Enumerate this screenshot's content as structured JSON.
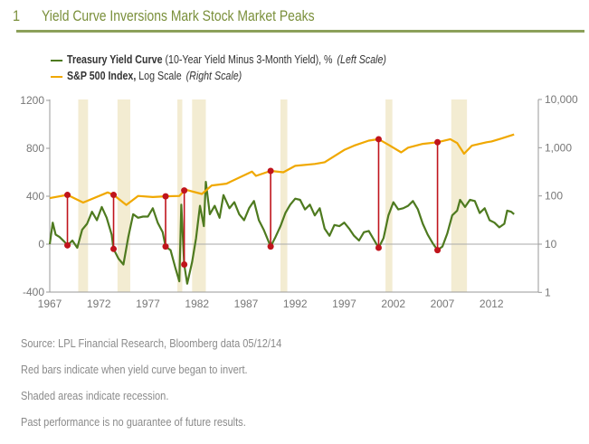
{
  "header": {
    "number": "1",
    "title": "Yield Curve Inversions Mark Stock Market Peaks"
  },
  "legend": [
    {
      "bold": "Treasury Yield Curve",
      "rest": " (10-Year Yield Minus 3-Month Yield), %",
      "scale": "(Left Scale)",
      "color": "#4e7a1f"
    },
    {
      "bold": "S&P 500 Index,",
      "rest": " Log Scale",
      "scale": "(Right Scale)",
      "color": "#f0a800"
    }
  ],
  "footer": [
    "Source: LPL Financial Research, Bloomberg data   05/12/14",
    "Red bars indicate when yield curve began to invert.",
    "Shaded areas indicate recession.",
    "Past performance is no guarantee of future results."
  ],
  "chart_data": {
    "type": "line",
    "title": "Yield Curve Inversions Mark Stock Market Peaks",
    "xlim": [
      1967,
      2014.4
    ],
    "x_ticks": [
      "1967",
      "1972",
      "1977",
      "1982",
      "1987",
      "1992",
      "1997",
      "2002",
      "2007",
      "2012"
    ],
    "left_axis": {
      "ylim": [
        -400,
        1200
      ],
      "ticks": [
        "1200",
        "800",
        "400",
        "0",
        "-400"
      ],
      "tick_values": [
        1200,
        800,
        400,
        0,
        -400
      ]
    },
    "right_axis": {
      "scale": "log",
      "ylim": [
        1,
        10000
      ],
      "ticks": [
        "10,000",
        "1,000",
        "100",
        "10",
        "1"
      ],
      "tick_values": [
        10000,
        1000,
        100,
        10,
        1
      ]
    },
    "colors": {
      "yield": "#4e7a1f",
      "sp500": "#f0a800",
      "inversion": "#c0141c",
      "recession": "#f3ecd2"
    },
    "recessions": [
      [
        1969.9,
        1970.9
      ],
      [
        1973.9,
        1975.2
      ],
      [
        1980.0,
        1980.5
      ],
      [
        1981.5,
        1982.9
      ],
      [
        1990.5,
        1991.2
      ],
      [
        2001.2,
        2001.9
      ],
      [
        2007.9,
        2009.5
      ]
    ],
    "series": [
      {
        "name": "Treasury Yield Curve",
        "axis": "left",
        "points": [
          [
            1967.0,
            0
          ],
          [
            1967.3,
            180
          ],
          [
            1967.6,
            80
          ],
          [
            1968.0,
            60
          ],
          [
            1968.5,
            20
          ],
          [
            1968.8,
            -10
          ],
          [
            1969.3,
            30
          ],
          [
            1969.8,
            -30
          ],
          [
            1970.3,
            120
          ],
          [
            1970.8,
            170
          ],
          [
            1971.3,
            270
          ],
          [
            1971.8,
            200
          ],
          [
            1972.3,
            310
          ],
          [
            1972.8,
            220
          ],
          [
            1973.3,
            80
          ],
          [
            1973.5,
            -40
          ],
          [
            1974.0,
            -120
          ],
          [
            1974.5,
            -170
          ],
          [
            1975.0,
            60
          ],
          [
            1975.5,
            250
          ],
          [
            1976.0,
            220
          ],
          [
            1976.5,
            230
          ],
          [
            1977.0,
            230
          ],
          [
            1977.5,
            300
          ],
          [
            1978.0,
            180
          ],
          [
            1978.5,
            100
          ],
          [
            1978.8,
            -20
          ],
          [
            1979.3,
            -50
          ],
          [
            1979.8,
            -200
          ],
          [
            1980.2,
            -310
          ],
          [
            1980.4,
            330
          ],
          [
            1980.7,
            -170
          ],
          [
            1981.0,
            -330
          ],
          [
            1981.5,
            -150
          ],
          [
            1981.9,
            50
          ],
          [
            1982.3,
            320
          ],
          [
            1982.7,
            150
          ],
          [
            1982.9,
            520
          ],
          [
            1983.3,
            250
          ],
          [
            1983.8,
            320
          ],
          [
            1984.3,
            220
          ],
          [
            1984.7,
            410
          ],
          [
            1985.3,
            300
          ],
          [
            1985.8,
            350
          ],
          [
            1986.3,
            250
          ],
          [
            1986.8,
            200
          ],
          [
            1987.3,
            300
          ],
          [
            1987.8,
            360
          ],
          [
            1988.3,
            200
          ],
          [
            1988.8,
            120
          ],
          [
            1989.5,
            -20
          ],
          [
            1990.0,
            60
          ],
          [
            1990.5,
            150
          ],
          [
            1991.0,
            260
          ],
          [
            1991.5,
            330
          ],
          [
            1992.0,
            380
          ],
          [
            1992.5,
            370
          ],
          [
            1993.0,
            290
          ],
          [
            1993.5,
            330
          ],
          [
            1994.0,
            240
          ],
          [
            1994.5,
            300
          ],
          [
            1995.0,
            130
          ],
          [
            1995.5,
            70
          ],
          [
            1996.0,
            160
          ],
          [
            1996.5,
            150
          ],
          [
            1997.0,
            180
          ],
          [
            1997.5,
            130
          ],
          [
            1998.0,
            70
          ],
          [
            1998.5,
            30
          ],
          [
            1999.0,
            100
          ],
          [
            1999.5,
            110
          ],
          [
            2000.5,
            -30
          ],
          [
            2001.0,
            50
          ],
          [
            2001.5,
            240
          ],
          [
            2002.0,
            350
          ],
          [
            2002.5,
            290
          ],
          [
            2003.0,
            300
          ],
          [
            2003.5,
            320
          ],
          [
            2004.0,
            360
          ],
          [
            2004.5,
            290
          ],
          [
            2005.0,
            170
          ],
          [
            2005.5,
            80
          ],
          [
            2006.0,
            10
          ],
          [
            2006.5,
            -50
          ],
          [
            2007.0,
            -20
          ],
          [
            2007.5,
            90
          ],
          [
            2008.0,
            240
          ],
          [
            2008.5,
            280
          ],
          [
            2008.8,
            370
          ],
          [
            2009.3,
            310
          ],
          [
            2009.8,
            370
          ],
          [
            2010.3,
            360
          ],
          [
            2010.8,
            260
          ],
          [
            2011.3,
            300
          ],
          [
            2011.8,
            200
          ],
          [
            2012.3,
            180
          ],
          [
            2012.8,
            140
          ],
          [
            2013.3,
            170
          ],
          [
            2013.6,
            280
          ],
          [
            2014.0,
            270
          ],
          [
            2014.3,
            250
          ]
        ]
      },
      {
        "name": "S&P 500 Index",
        "axis": "right",
        "points": [
          [
            1967.0,
            90
          ],
          [
            1968.8,
            105
          ],
          [
            1970.4,
            73
          ],
          [
            1972.9,
            118
          ],
          [
            1973.5,
            105
          ],
          [
            1974.8,
            65
          ],
          [
            1976.0,
            100
          ],
          [
            1977.5,
            95
          ],
          [
            1978.8,
            98
          ],
          [
            1980.2,
            100
          ],
          [
            1980.8,
            135
          ],
          [
            1982.5,
            110
          ],
          [
            1983.5,
            165
          ],
          [
            1985.0,
            180
          ],
          [
            1987.6,
            320
          ],
          [
            1988.0,
            260
          ],
          [
            1989.5,
            330
          ],
          [
            1990.8,
            310
          ],
          [
            1992.0,
            420
          ],
          [
            1994.0,
            460
          ],
          [
            1995.0,
            500
          ],
          [
            1997.0,
            900
          ],
          [
            1998.0,
            1100
          ],
          [
            1999.5,
            1400
          ],
          [
            2000.5,
            1500
          ],
          [
            2001.5,
            1150
          ],
          [
            2002.8,
            800
          ],
          [
            2003.5,
            1000
          ],
          [
            2005.0,
            1200
          ],
          [
            2006.5,
            1300
          ],
          [
            2007.8,
            1500
          ],
          [
            2008.5,
            1250
          ],
          [
            2009.2,
            750
          ],
          [
            2010.0,
            1100
          ],
          [
            2011.5,
            1300
          ],
          [
            2012.0,
            1350
          ],
          [
            2013.0,
            1550
          ],
          [
            2014.3,
            1880
          ]
        ]
      }
    ],
    "inversions": [
      {
        "x": 1968.8,
        "yield": -10,
        "sp500": 105
      },
      {
        "x": 1973.5,
        "yield": -40,
        "sp500": 105
      },
      {
        "x": 1978.8,
        "yield": -20,
        "sp500": 98
      },
      {
        "x": 1980.7,
        "yield": -170,
        "sp500": 130
      },
      {
        "x": 1989.5,
        "yield": -20,
        "sp500": 330
      },
      {
        "x": 2000.5,
        "yield": -30,
        "sp500": 1500
      },
      {
        "x": 2006.5,
        "yield": -50,
        "sp500": 1300
      }
    ]
  }
}
